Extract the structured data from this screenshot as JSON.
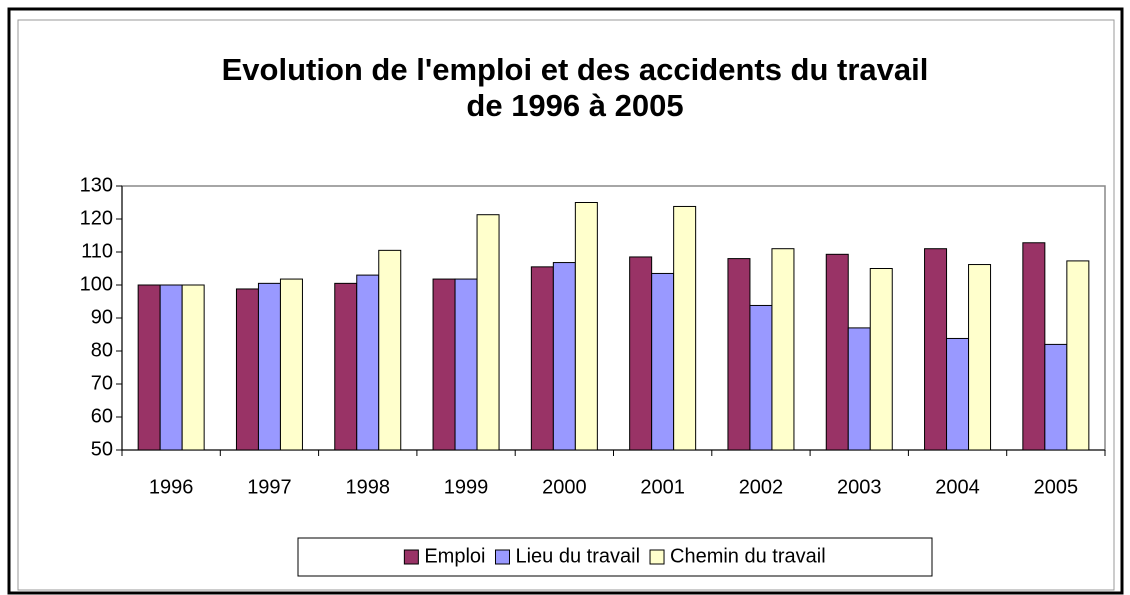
{
  "chart_data": {
    "type": "bar",
    "title": [
      "Evolution de l'emploi et des accidents du travail",
      "de 1996 à 2005"
    ],
    "categories": [
      "1996",
      "1997",
      "1998",
      "1999",
      "2000",
      "2001",
      "2002",
      "2003",
      "2004",
      "2005"
    ],
    "series": [
      {
        "name": "Emploi",
        "color": "#993366",
        "values": [
          100,
          98.8,
          100.5,
          101.8,
          105.5,
          108.5,
          108,
          109.3,
          111,
          112.8
        ]
      },
      {
        "name": "Lieu du travail",
        "color": "#9999ff",
        "values": [
          100,
          100.5,
          103,
          101.8,
          106.8,
          103.5,
          93.8,
          87,
          83.8,
          82
        ]
      },
      {
        "name": "Chemin du travail",
        "color": "#ffffcc",
        "values": [
          100,
          101.8,
          110.5,
          121.3,
          125,
          123.8,
          111,
          105,
          106.2,
          107.3
        ]
      }
    ],
    "ylim": [
      50,
      130
    ],
    "yticks": [
      50,
      60,
      70,
      80,
      90,
      100,
      110,
      120,
      130
    ],
    "legend": "bottom"
  }
}
